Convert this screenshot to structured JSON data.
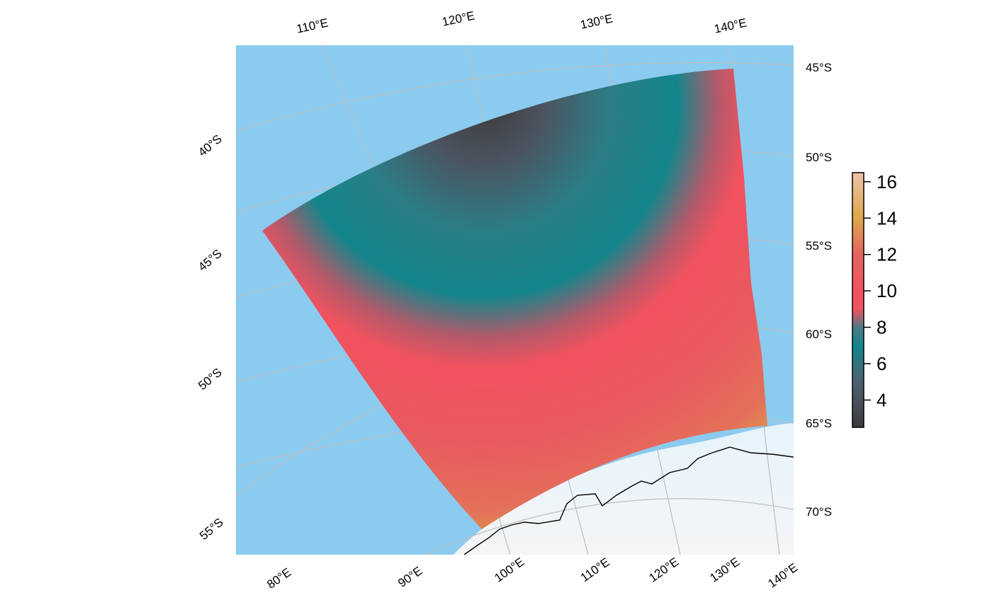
{
  "map": {
    "top_lon_labels": [
      "110°E",
      "120°E",
      "130°E",
      "140°E"
    ],
    "right_lat_labels": [
      "45°S",
      "50°S",
      "55°S",
      "60°S",
      "65°S",
      "70°S"
    ],
    "left_lat_labels": [
      "40°S",
      "45°S",
      "50°S",
      "55°S"
    ],
    "bottom_lon_labels": [
      "80°E",
      "90°E",
      "100°E",
      "110°E",
      "120°E",
      "130°E",
      "140°E"
    ],
    "colors": {
      "ocean": "#8ccbf0",
      "ice": "#f2f4f6",
      "graticule": "#bdbdbd",
      "coast": "#000000"
    }
  },
  "colorbar": {
    "ticks": [
      "4",
      "6",
      "8",
      "10",
      "12",
      "14",
      "16"
    ],
    "tick_values": [
      4,
      6,
      8,
      10,
      12,
      14,
      16
    ],
    "range": [
      2.5,
      16.5
    ],
    "palette": [
      {
        "v": 2.5,
        "c": "#3d3a3b"
      },
      {
        "v": 5.0,
        "c": "#4e6070"
      },
      {
        "v": 7.0,
        "c": "#13868c"
      },
      {
        "v": 8.0,
        "c": "#4f7886"
      },
      {
        "v": 9.0,
        "c": "#ef5462"
      },
      {
        "v": 10.0,
        "c": "#f1525f"
      },
      {
        "v": 12.0,
        "c": "#e4645f"
      },
      {
        "v": 14.0,
        "c": "#dda74a"
      },
      {
        "v": 16.5,
        "c": "#eec2a8"
      }
    ]
  }
}
